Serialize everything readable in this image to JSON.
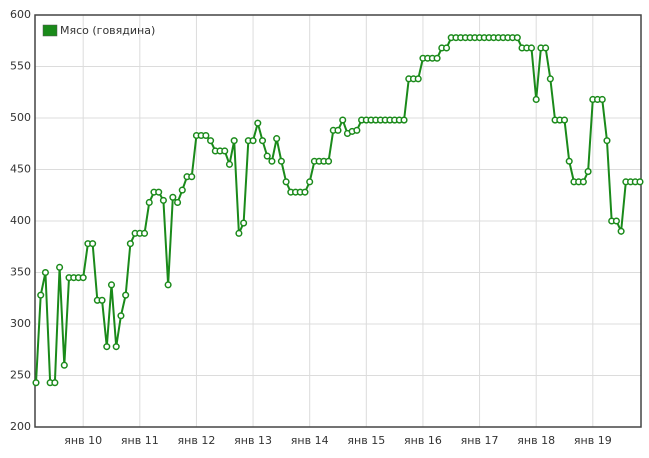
{
  "chart_data": {
    "type": "line",
    "categories": [
      null,
      null,
      null,
      null,
      null,
      null,
      null,
      null,
      null,
      null,
      "янв 10",
      null,
      null,
      null,
      null,
      null,
      null,
      null,
      null,
      null,
      null,
      null,
      "янв 11",
      null,
      null,
      null,
      null,
      null,
      null,
      null,
      null,
      null,
      null,
      null,
      "янв 12",
      null,
      null,
      null,
      null,
      null,
      null,
      null,
      null,
      null,
      null,
      null,
      "янв 13",
      null,
      null,
      null,
      null,
      null,
      null,
      null,
      null,
      null,
      null,
      null,
      "янв 14",
      null,
      null,
      null,
      null,
      null,
      null,
      null,
      null,
      null,
      null,
      null,
      "янв 15",
      null,
      null,
      null,
      null,
      null,
      null,
      null,
      null,
      null,
      null,
      null,
      "янв 16",
      null,
      null,
      null,
      null,
      null,
      null,
      null,
      null,
      null,
      null,
      null,
      "янв 17",
      null,
      null,
      null,
      null,
      null,
      null,
      null,
      null,
      null,
      null,
      null,
      "янв 18",
      null,
      null,
      null,
      null,
      null,
      null,
      null,
      null,
      null,
      null,
      null,
      "янв 19",
      null,
      null,
      null,
      null,
      null,
      null,
      null,
      null,
      null,
      null
    ],
    "series": [
      {
        "name": "Мясо (говядина)",
        "color": "#1a8a1a",
        "values": [
          243,
          328,
          350,
          243,
          243,
          355,
          260,
          345,
          345,
          345,
          345,
          378,
          378,
          323,
          323,
          278,
          338,
          278,
          308,
          328,
          378,
          388,
          388,
          388,
          418,
          428,
          428,
          420,
          338,
          423,
          418,
          430,
          443,
          443,
          483,
          483,
          483,
          478,
          468,
          468,
          468,
          455,
          478,
          388,
          398,
          478,
          478,
          495,
          478,
          463,
          458,
          480,
          458,
          438,
          428,
          428,
          428,
          428,
          438,
          458,
          458,
          458,
          458,
          488,
          488,
          498,
          485,
          487,
          488,
          498,
          498,
          498,
          498,
          498,
          498,
          498,
          498,
          498,
          498,
          538,
          538,
          538,
          558,
          558,
          558,
          558,
          568,
          568,
          578,
          578,
          578,
          578,
          578,
          578,
          578,
          578,
          578,
          578,
          578,
          578,
          578,
          578,
          578,
          568,
          568,
          568,
          518,
          568,
          568,
          538,
          498,
          498,
          498,
          458,
          438,
          438,
          438,
          448,
          518,
          518,
          518,
          478,
          400,
          400,
          390,
          438,
          438,
          438,
          438
        ]
      }
    ],
    "ylim": [
      200,
      600
    ],
    "yticks": [
      200,
      250,
      300,
      350,
      400,
      450,
      500,
      550,
      600
    ],
    "grid": true,
    "legend": "top-left"
  }
}
